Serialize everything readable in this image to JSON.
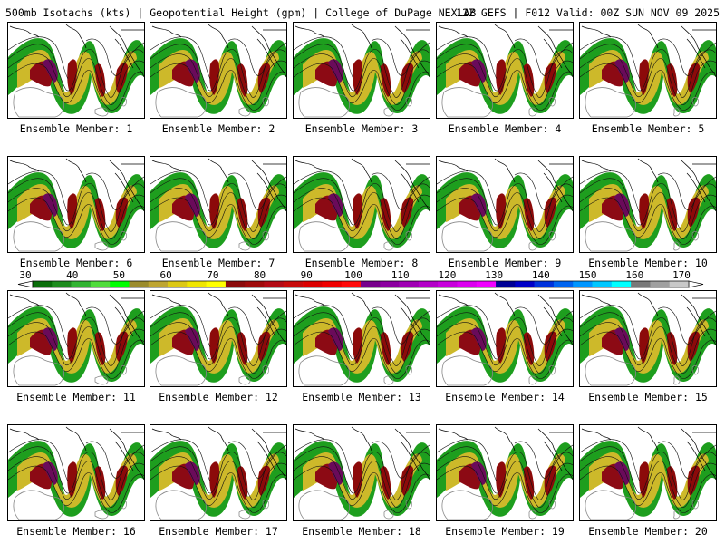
{
  "header": {
    "title_left": "500mb Isotachs (kts) | Geopotential Height (gpm) | College of DuPage NEXLAB",
    "title_right": "12Z GEFS | F012 Valid: 00Z SUN NOV 09 2025"
  },
  "members": [
    {
      "label": "Ensemble Member: 1"
    },
    {
      "label": "Ensemble Member: 2"
    },
    {
      "label": "Ensemble Member: 3"
    },
    {
      "label": "Ensemble Member: 4"
    },
    {
      "label": "Ensemble Member: 5"
    },
    {
      "label": "Ensemble Member: 6"
    },
    {
      "label": "Ensemble Member: 7"
    },
    {
      "label": "Ensemble Member: 8"
    },
    {
      "label": "Ensemble Member: 9"
    },
    {
      "label": "Ensemble Member: 10"
    },
    {
      "label": "Ensemble Member: 11"
    },
    {
      "label": "Ensemble Member: 12"
    },
    {
      "label": "Ensemble Member: 13"
    },
    {
      "label": "Ensemble Member: 14"
    },
    {
      "label": "Ensemble Member: 15"
    },
    {
      "label": "Ensemble Member: 16"
    },
    {
      "label": "Ensemble Member: 17"
    },
    {
      "label": "Ensemble Member: 18"
    },
    {
      "label": "Ensemble Member: 19"
    },
    {
      "label": "Ensemble Member: 20"
    }
  ],
  "colorbar": {
    "tick_labels": [
      "30",
      "40",
      "50",
      "60",
      "70",
      "80",
      "90",
      "100",
      "110",
      "120",
      "130",
      "140",
      "150",
      "160",
      "170"
    ],
    "colors": [
      "#0a6e0a",
      "#1e8c1e",
      "#32b432",
      "#50dc3c",
      "#00ff00",
      "#9b8c2d",
      "#bea532",
      "#dcc814",
      "#f0e600",
      "#ffff00",
      "#8c0a0a",
      "#a00a0a",
      "#b40a14",
      "#c80a0a",
      "#dc0000",
      "#f00000",
      "#ff0a0a",
      "#78008c",
      "#8c00a0",
      "#a000b4",
      "#b400c8",
      "#c800dc",
      "#dc00f0",
      "#f000ff",
      "#000096",
      "#0000c8",
      "#0032dc",
      "#0064f0",
      "#0096ff",
      "#00c8ff",
      "#00ffff",
      "#787878",
      "#a0a0a0",
      "#c8c8c8"
    ]
  }
}
